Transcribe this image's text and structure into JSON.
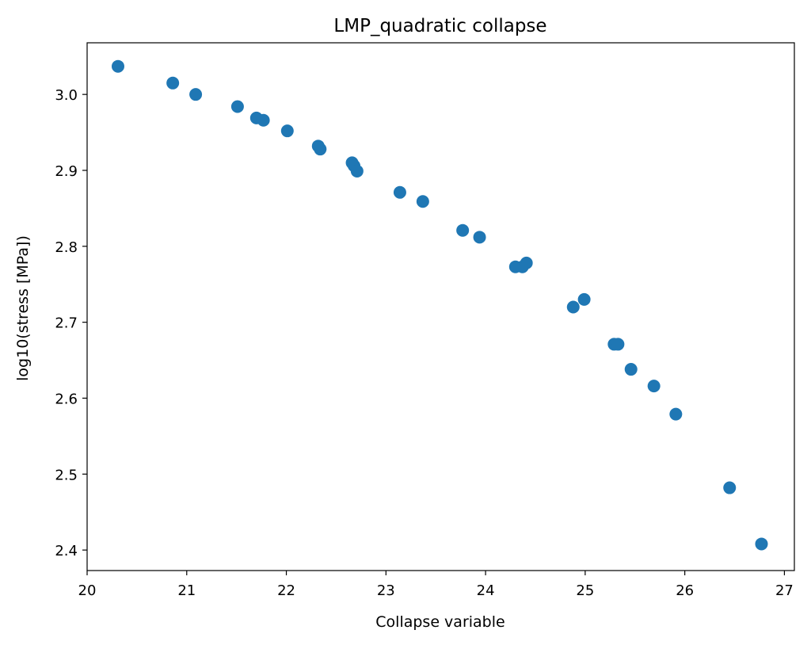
{
  "chart_data": {
    "type": "scatter",
    "title": "LMP_quadratic collapse",
    "xlabel": "Collapse variable",
    "ylabel": "log10(stress [MPa])",
    "xlim": [
      20,
      27.1
    ],
    "ylim": [
      2.373,
      3.068
    ],
    "xticks": [
      20,
      21,
      22,
      23,
      24,
      25,
      26,
      27
    ],
    "xtick_labels": [
      "20",
      "21",
      "22",
      "23",
      "24",
      "25",
      "26",
      "27"
    ],
    "yticks": [
      2.4,
      2.5,
      2.6,
      2.7,
      2.8,
      2.9,
      3.0
    ],
    "ytick_labels": [
      "2.4",
      "2.5",
      "2.6",
      "2.7",
      "2.8",
      "2.9",
      "3.0"
    ],
    "grid": false,
    "legend": false,
    "marker_color": "#1f77b4",
    "series": [
      {
        "points": [
          {
            "x": 20.31,
            "y": 3.037
          },
          {
            "x": 20.86,
            "y": 3.015
          },
          {
            "x": 21.09,
            "y": 3.0
          },
          {
            "x": 21.51,
            "y": 2.984
          },
          {
            "x": 21.7,
            "y": 2.969
          },
          {
            "x": 21.77,
            "y": 2.966
          },
          {
            "x": 22.01,
            "y": 2.952
          },
          {
            "x": 22.32,
            "y": 2.932
          },
          {
            "x": 22.34,
            "y": 2.928
          },
          {
            "x": 22.66,
            "y": 2.91
          },
          {
            "x": 22.68,
            "y": 2.906
          },
          {
            "x": 22.71,
            "y": 2.899
          },
          {
            "x": 23.14,
            "y": 2.871
          },
          {
            "x": 23.37,
            "y": 2.859
          },
          {
            "x": 23.77,
            "y": 2.821
          },
          {
            "x": 23.94,
            "y": 2.812
          },
          {
            "x": 24.3,
            "y": 2.773
          },
          {
            "x": 24.37,
            "y": 2.773
          },
          {
            "x": 24.41,
            "y": 2.778
          },
          {
            "x": 24.88,
            "y": 2.72
          },
          {
            "x": 24.99,
            "y": 2.73
          },
          {
            "x": 25.29,
            "y": 2.671
          },
          {
            "x": 25.33,
            "y": 2.671
          },
          {
            "x": 25.46,
            "y": 2.638
          },
          {
            "x": 25.69,
            "y": 2.616
          },
          {
            "x": 25.91,
            "y": 2.579
          },
          {
            "x": 26.45,
            "y": 2.482
          },
          {
            "x": 26.77,
            "y": 2.408
          }
        ]
      }
    ]
  }
}
